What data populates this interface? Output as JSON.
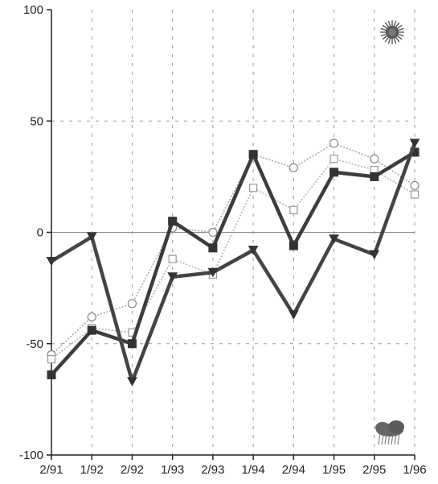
{
  "chart_data": {
    "type": "line",
    "categories": [
      "2/91",
      "1/92",
      "2/92",
      "1/93",
      "2/93",
      "1/94",
      "2/94",
      "1/95",
      "2/95",
      "1/96"
    ],
    "ylim": [
      -100,
      100
    ],
    "yticks": [
      -100,
      -50,
      0,
      50,
      100
    ],
    "grid": true,
    "icons": {
      "top_right": "sun-icon",
      "bottom_right": "rain-cloud-icon"
    },
    "series": [
      {
        "marker": "circle",
        "style": "thin-dotted",
        "color": "#a8a8a8",
        "values": [
          -55,
          -38,
          -32,
          2,
          0,
          35,
          29,
          40,
          33,
          21
        ]
      },
      {
        "marker": "square-open",
        "style": "thin-dotted",
        "color": "#b4b4b4",
        "values": [
          -57,
          -43,
          -45,
          -12,
          -19,
          20,
          10,
          33,
          28,
          17
        ]
      },
      {
        "marker": "square-filled",
        "style": "thick",
        "color": "#3c3c3c",
        "values": [
          -64,
          -44,
          -50,
          5,
          -7,
          35,
          -6,
          27,
          25,
          36
        ]
      },
      {
        "marker": "triangle-down",
        "style": "thick",
        "color": "#444444",
        "values": [
          -13,
          -2,
          -67,
          -20,
          -18,
          -8,
          -37,
          -3,
          -10,
          40
        ]
      }
    ],
    "colors": {
      "axis": "#222222",
      "grid": "#9a9a9a",
      "zero_line": "#888888"
    }
  }
}
